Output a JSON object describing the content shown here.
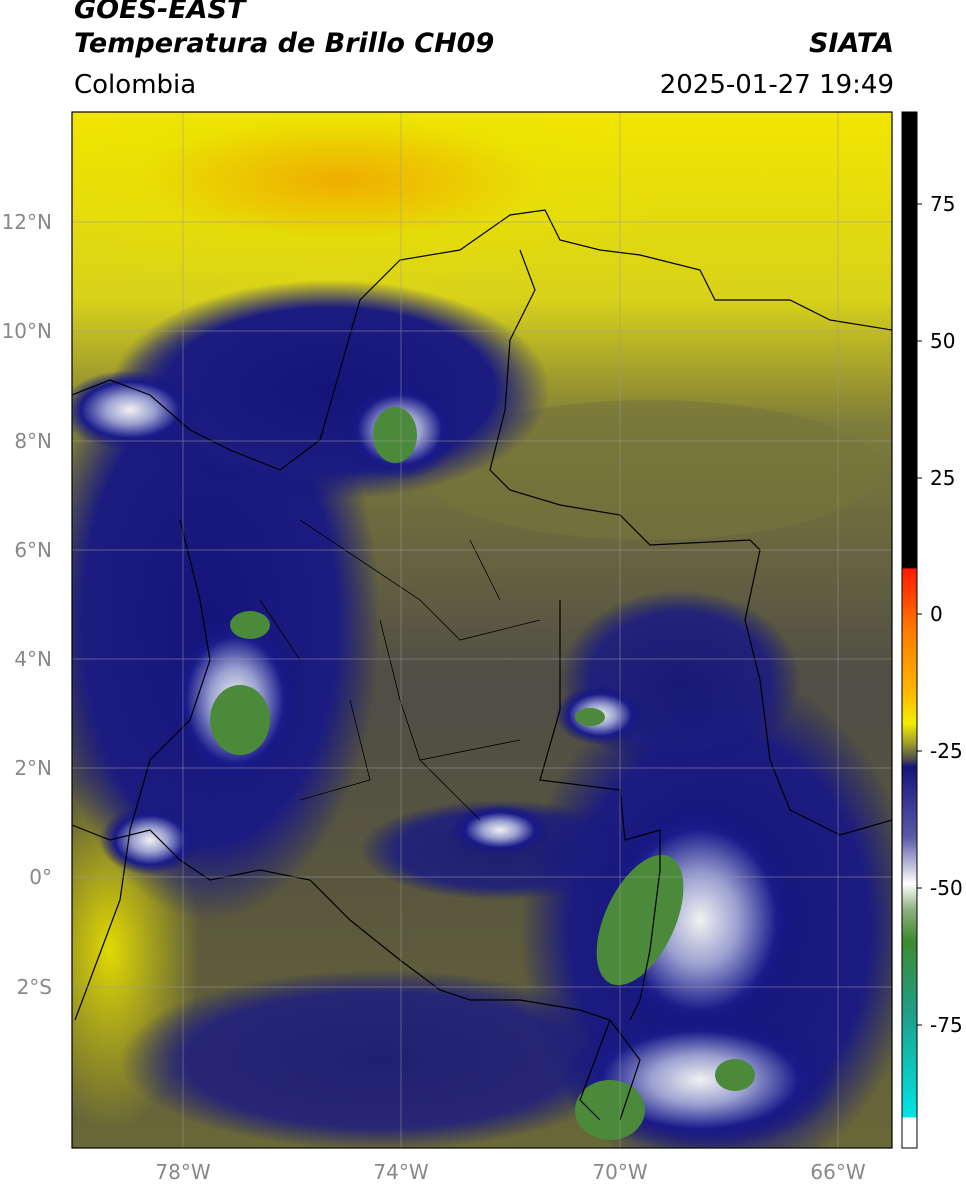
{
  "header": {
    "satellite": "GOES-EAST",
    "product": "Temperatura de Brillo CH09",
    "agency": "SIATA",
    "region": "Colombia",
    "datetime": "2025-01-27 19:49"
  },
  "axes": {
    "lat_labels": [
      "12°N",
      "10°N",
      "8°N",
      "6°N",
      "4°N",
      "2°N",
      "0°",
      "2°S"
    ],
    "lon_labels": [
      "78°W",
      "74°W",
      "70°W",
      "66°W"
    ]
  },
  "colorbar": {
    "ticks": [
      "75",
      "50",
      "25",
      "0",
      "-25",
      "-50",
      "-75"
    ],
    "colors": {
      "black": "#000000",
      "red": "#ff1a00",
      "orange": "#ffa500",
      "yellow": "#f2ee00",
      "olive": "#9c9a2e",
      "gray": "#4c4c4c",
      "navy": "#14147a",
      "white": "#f5f5f5",
      "green": "#3e8a2e",
      "teal": "#1fa08a",
      "cyan": "#00e5e5"
    }
  }
}
